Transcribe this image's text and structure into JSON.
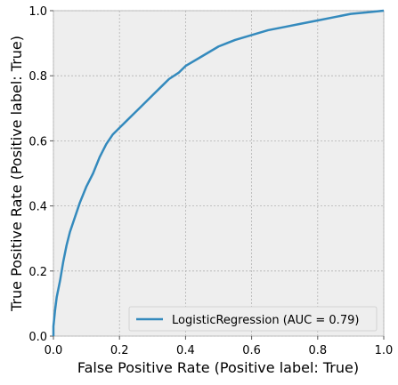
{
  "chart_data": {
    "type": "line",
    "xlabel": "False Positive Rate (Positive label: True)",
    "ylabel": "True Positive Rate (Positive label: True)",
    "xlim": [
      0,
      1
    ],
    "ylim": [
      0,
      1
    ],
    "xticks": [
      0.0,
      0.2,
      0.4,
      0.6,
      0.8,
      1.0
    ],
    "yticks": [
      0.0,
      0.2,
      0.4,
      0.6,
      0.8,
      1.0
    ],
    "xtick_labels": [
      "0.0",
      "0.2",
      "0.4",
      "0.6",
      "0.8",
      "1.0"
    ],
    "ytick_labels": [
      "0.0",
      "0.2",
      "0.4",
      "0.6",
      "0.8",
      "1.0"
    ],
    "grid": true,
    "legend_position": "bottom-right",
    "series": [
      {
        "name": "LogisticRegression (AUC = 0.79)",
        "color": "#348abd",
        "x": [
          0.0,
          0.0,
          0.005,
          0.01,
          0.02,
          0.03,
          0.04,
          0.05,
          0.06,
          0.07,
          0.08,
          0.1,
          0.12,
          0.14,
          0.16,
          0.18,
          0.2,
          0.22,
          0.25,
          0.28,
          0.3,
          0.33,
          0.35,
          0.38,
          0.4,
          0.45,
          0.5,
          0.55,
          0.6,
          0.65,
          0.7,
          0.75,
          0.8,
          0.85,
          0.9,
          0.95,
          1.0
        ],
        "y": [
          0.0,
          0.03,
          0.08,
          0.12,
          0.17,
          0.23,
          0.28,
          0.32,
          0.35,
          0.38,
          0.41,
          0.46,
          0.5,
          0.55,
          0.59,
          0.62,
          0.64,
          0.66,
          0.69,
          0.72,
          0.74,
          0.77,
          0.79,
          0.81,
          0.83,
          0.86,
          0.89,
          0.91,
          0.925,
          0.94,
          0.95,
          0.96,
          0.97,
          0.98,
          0.99,
          0.995,
          1.0
        ]
      }
    ]
  }
}
